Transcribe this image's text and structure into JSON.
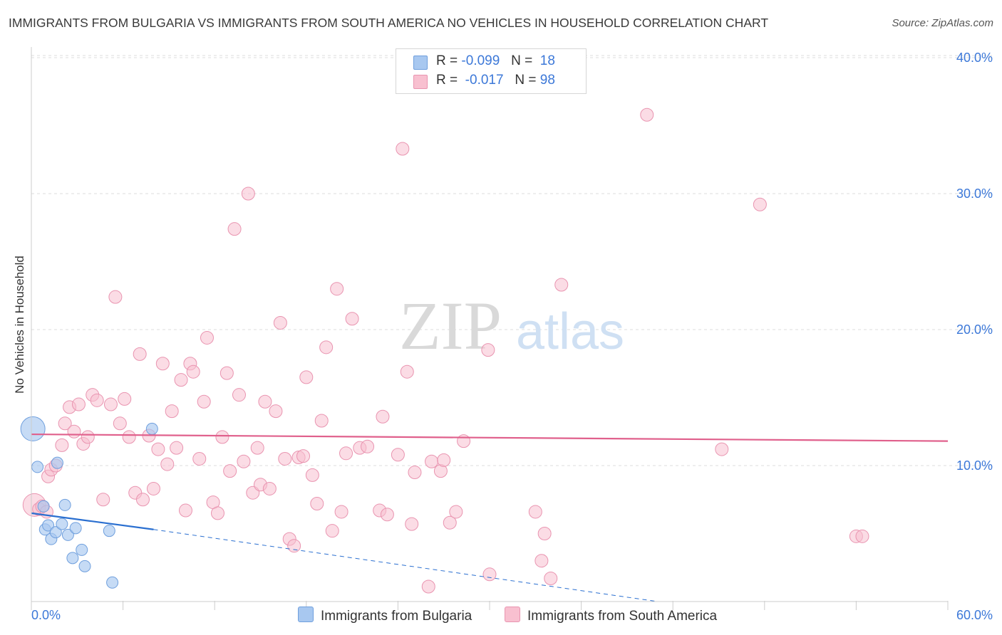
{
  "title": "IMMIGRANTS FROM BULGARIA VS IMMIGRANTS FROM SOUTH AMERICA NO VEHICLES IN HOUSEHOLD CORRELATION CHART",
  "source": "Source: ZipAtlas.com",
  "watermark": {
    "zip": "ZIP",
    "atlas": "atlas"
  },
  "legend_top": [
    {
      "r_label": "R =",
      "r_value": "-0.099",
      "n_label": "N =",
      "n_value": "18"
    },
    {
      "r_label": "R =",
      "r_value": "-0.017",
      "n_label": "N =",
      "n_value": "98"
    }
  ],
  "colors": {
    "bulgaria_fill": "#a8c8f0",
    "bulgaria_stroke": "#6f9fdd",
    "bulgaria_line": "#2a6fd0",
    "south_america_fill": "#f8c0d0",
    "south_america_stroke": "#e994b0",
    "south_america_line": "#e0608c",
    "axis_text": "#3c78d8",
    "grid": "#dddddd"
  },
  "chart_data": {
    "type": "scatter",
    "title": "IMMIGRANTS FROM BULGARIA VS IMMIGRANTS FROM SOUTH AMERICA NO VEHICLES IN HOUSEHOLD CORRELATION CHART",
    "xlabel": "",
    "ylabel": "No Vehicles in Household",
    "xlim": [
      0,
      60
    ],
    "ylim": [
      0,
      42
    ],
    "x_tick_labels": [
      "0.0%",
      "60.0%"
    ],
    "y_ticks": [
      10,
      20,
      30,
      40
    ],
    "y_tick_labels": [
      "10.0%",
      "20.0%",
      "30.0%",
      "40.0%"
    ],
    "grid": true,
    "series": [
      {
        "name": "Immigrants from Bulgaria",
        "r": -0.099,
        "n": 18,
        "trend": {
          "solid_x": [
            0,
            8
          ],
          "y_start": 6.5,
          "y_end": 5.3,
          "dashed_to_x": 41,
          "dashed_end_y": 0.0
        },
        "points": [
          {
            "x": 0.1,
            "y": 12.7,
            "big": true
          },
          {
            "x": 0.4,
            "y": 9.9
          },
          {
            "x": 0.8,
            "y": 7.0
          },
          {
            "x": 0.9,
            "y": 5.3
          },
          {
            "x": 1.1,
            "y": 5.6
          },
          {
            "x": 1.3,
            "y": 4.6
          },
          {
            "x": 1.6,
            "y": 5.1
          },
          {
            "x": 1.7,
            "y": 10.2
          },
          {
            "x": 2.0,
            "y": 5.7
          },
          {
            "x": 2.2,
            "y": 7.1
          },
          {
            "x": 2.4,
            "y": 4.9
          },
          {
            "x": 2.7,
            "y": 3.2
          },
          {
            "x": 2.9,
            "y": 5.4
          },
          {
            "x": 3.3,
            "y": 3.8
          },
          {
            "x": 3.5,
            "y": 2.6
          },
          {
            "x": 5.1,
            "y": 5.2
          },
          {
            "x": 5.3,
            "y": 1.4
          },
          {
            "x": 7.9,
            "y": 12.7
          }
        ]
      },
      {
        "name": "Immigrants from South America",
        "r": -0.017,
        "n": 98,
        "trend": {
          "x": [
            0,
            60
          ],
          "y_start": 12.3,
          "y_end": 11.8
        },
        "points": [
          {
            "x": 0.2,
            "y": 7.1,
            "big": true
          },
          {
            "x": 0.5,
            "y": 6.8
          },
          {
            "x": 0.7,
            "y": 7.0
          },
          {
            "x": 1.0,
            "y": 6.6
          },
          {
            "x": 1.1,
            "y": 9.2
          },
          {
            "x": 1.3,
            "y": 9.7
          },
          {
            "x": 1.6,
            "y": 10.0
          },
          {
            "x": 2.0,
            "y": 11.5
          },
          {
            "x": 2.2,
            "y": 13.1
          },
          {
            "x": 2.5,
            "y": 14.3
          },
          {
            "x": 2.8,
            "y": 12.5
          },
          {
            "x": 3.1,
            "y": 14.5
          },
          {
            "x": 3.4,
            "y": 11.6
          },
          {
            "x": 3.7,
            "y": 12.1
          },
          {
            "x": 4.0,
            "y": 15.2
          },
          {
            "x": 4.3,
            "y": 14.8
          },
          {
            "x": 4.7,
            "y": 7.5
          },
          {
            "x": 5.2,
            "y": 14.5
          },
          {
            "x": 5.5,
            "y": 22.4
          },
          {
            "x": 5.8,
            "y": 13.1
          },
          {
            "x": 6.1,
            "y": 14.9
          },
          {
            "x": 6.4,
            "y": 12.1
          },
          {
            "x": 6.8,
            "y": 8.0
          },
          {
            "x": 7.1,
            "y": 18.2
          },
          {
            "x": 7.3,
            "y": 7.5
          },
          {
            "x": 7.7,
            "y": 12.2
          },
          {
            "x": 8.0,
            "y": 8.3
          },
          {
            "x": 8.3,
            "y": 11.2
          },
          {
            "x": 8.6,
            "y": 17.5
          },
          {
            "x": 8.9,
            "y": 10.1
          },
          {
            "x": 9.2,
            "y": 14.0
          },
          {
            "x": 9.5,
            "y": 11.3
          },
          {
            "x": 9.8,
            "y": 16.3
          },
          {
            "x": 10.1,
            "y": 6.7
          },
          {
            "x": 10.4,
            "y": 17.5
          },
          {
            "x": 10.6,
            "y": 16.9
          },
          {
            "x": 11.0,
            "y": 10.5
          },
          {
            "x": 11.3,
            "y": 14.7
          },
          {
            "x": 11.5,
            "y": 19.4
          },
          {
            "x": 11.9,
            "y": 7.3
          },
          {
            "x": 12.2,
            "y": 6.5
          },
          {
            "x": 12.5,
            "y": 12.1
          },
          {
            "x": 12.8,
            "y": 16.8
          },
          {
            "x": 13.0,
            "y": 9.6
          },
          {
            "x": 13.3,
            "y": 27.4
          },
          {
            "x": 13.6,
            "y": 15.2
          },
          {
            "x": 13.9,
            "y": 10.3
          },
          {
            "x": 14.2,
            "y": 30.0
          },
          {
            "x": 14.5,
            "y": 8.0
          },
          {
            "x": 14.8,
            "y": 11.3
          },
          {
            "x": 15.0,
            "y": 8.6
          },
          {
            "x": 15.3,
            "y": 14.7
          },
          {
            "x": 15.6,
            "y": 8.3
          },
          {
            "x": 16.0,
            "y": 14.0
          },
          {
            "x": 16.3,
            "y": 20.5
          },
          {
            "x": 16.6,
            "y": 10.5
          },
          {
            "x": 16.9,
            "y": 4.6
          },
          {
            "x": 17.2,
            "y": 4.1
          },
          {
            "x": 17.5,
            "y": 10.6
          },
          {
            "x": 17.8,
            "y": 10.7
          },
          {
            "x": 18.0,
            "y": 16.5
          },
          {
            "x": 18.4,
            "y": 9.3
          },
          {
            "x": 18.7,
            "y": 7.2
          },
          {
            "x": 19.0,
            "y": 13.3
          },
          {
            "x": 19.3,
            "y": 18.7
          },
          {
            "x": 19.7,
            "y": 5.2
          },
          {
            "x": 20.0,
            "y": 23.0
          },
          {
            "x": 20.3,
            "y": 6.6
          },
          {
            "x": 20.6,
            "y": 10.9
          },
          {
            "x": 21.0,
            "y": 20.8
          },
          {
            "x": 21.5,
            "y": 11.3
          },
          {
            "x": 22.0,
            "y": 11.4
          },
          {
            "x": 22.8,
            "y": 6.7
          },
          {
            "x": 23.0,
            "y": 13.6
          },
          {
            "x": 23.3,
            "y": 6.4
          },
          {
            "x": 24.0,
            "y": 10.8
          },
          {
            "x": 24.3,
            "y": 33.3
          },
          {
            "x": 24.6,
            "y": 16.9
          },
          {
            "x": 24.9,
            "y": 5.7
          },
          {
            "x": 25.1,
            "y": 9.5
          },
          {
            "x": 26.0,
            "y": 1.1
          },
          {
            "x": 26.2,
            "y": 10.3
          },
          {
            "x": 26.8,
            "y": 9.6
          },
          {
            "x": 27.0,
            "y": 10.4
          },
          {
            "x": 27.4,
            "y": 5.8
          },
          {
            "x": 27.8,
            "y": 6.6
          },
          {
            "x": 28.3,
            "y": 11.8
          },
          {
            "x": 29.9,
            "y": 18.5
          },
          {
            "x": 30.0,
            "y": 2.0
          },
          {
            "x": 33.0,
            "y": 6.6
          },
          {
            "x": 33.4,
            "y": 3.0
          },
          {
            "x": 33.6,
            "y": 5.0
          },
          {
            "x": 34.0,
            "y": 1.7
          },
          {
            "x": 34.7,
            "y": 23.3
          },
          {
            "x": 40.3,
            "y": 35.8
          },
          {
            "x": 45.2,
            "y": 11.2
          },
          {
            "x": 47.7,
            "y": 29.2
          },
          {
            "x": 54.0,
            "y": 4.8
          },
          {
            "x": 54.4,
            "y": 4.8
          }
        ]
      }
    ]
  }
}
